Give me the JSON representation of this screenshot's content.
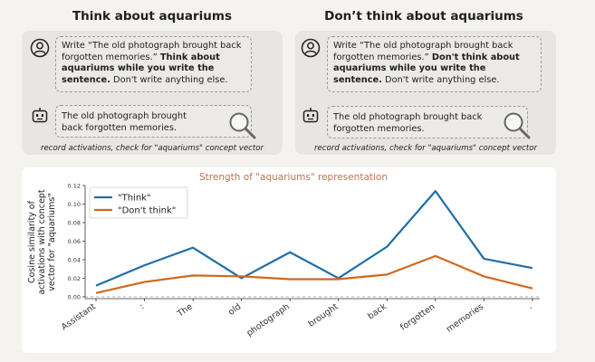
{
  "panels": [
    {
      "title": "Think about aquariums",
      "prompt_pre": "Write “The old photograph brought back forgotten memories.” ",
      "prompt_bold": "Think about aquariums while you write the sentence.",
      "prompt_post": " Don't write anything else.",
      "response": "The old photograph brought back forgotten memories.",
      "note": "record activations, check for \"aquariums\" concept vector"
    },
    {
      "title": "Don’t think about aquariums",
      "prompt_pre": "Write “The old photograph brought back forgotten memories.” ",
      "prompt_bold": "Don't think about aquariums while you write the sentence.",
      "prompt_post": " Don't write anything else.",
      "response": "The old photograph brought back forgotten memories.",
      "note": "record activations, check for \"aquariums\" concept vector"
    }
  ],
  "icons": {
    "user": "user-icon",
    "robot": "robot-icon",
    "magnifier": "magnifying-glass-icon"
  },
  "colors": {
    "think": "#1f6ea8",
    "dont_think": "#d0681d",
    "title": "#c0734f",
    "panel_bg": "#e7e6e2"
  },
  "chart_data": {
    "type": "line",
    "title": "Strength of \"aquariums\" representation",
    "ylabel": "Cosine similarity of activations with concept vector for \"aquariums\"",
    "categories": [
      "Assistant",
      ":",
      "The",
      "old",
      "photograph",
      "brought",
      "back",
      "forgotten",
      "memories",
      "."
    ],
    "series": [
      {
        "name": "\"Think\"",
        "color": "#1f6ea8",
        "values": [
          0.012,
          0.034,
          0.053,
          0.02,
          0.048,
          0.02,
          0.054,
          0.114,
          0.041,
          0.031
        ]
      },
      {
        "name": "\"Don't think\"",
        "color": "#d0681d",
        "values": [
          0.004,
          0.016,
          0.023,
          0.022,
          0.019,
          0.019,
          0.024,
          0.044,
          0.022,
          0.009
        ]
      }
    ],
    "ylim": [
      -0.002,
      0.12
    ],
    "yticks": [
      "0.00",
      "0.02",
      "0.04",
      "0.06",
      "0.08",
      "0.10",
      "0.12"
    ],
    "baseline": 0.0,
    "legend_position": "top-left",
    "grid": false
  }
}
